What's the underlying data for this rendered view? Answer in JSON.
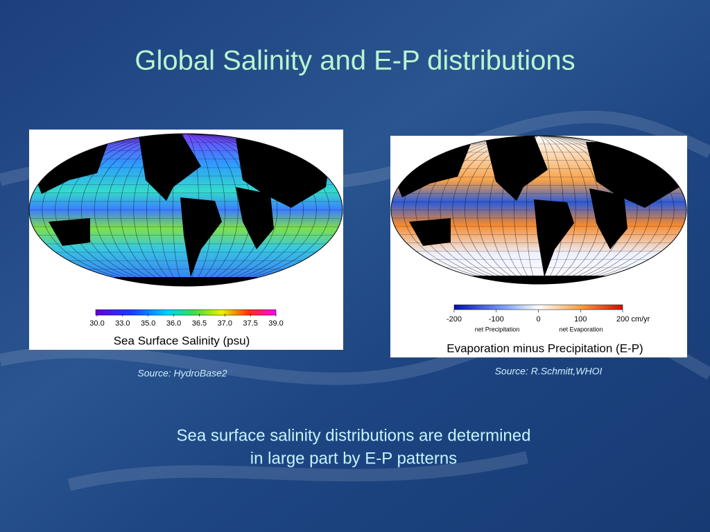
{
  "slide": {
    "title": "Global Salinity and E-P distributions",
    "figures": [
      {
        "colorbar_labels": [
          "30.0",
          "33.0",
          "35.0",
          "36.0",
          "36.5",
          "37.0",
          "37.5",
          "39.0"
        ],
        "caption": "Sea Surface Salinity (psu)",
        "source": "Source:  HydroBase2"
      },
      {
        "colorbar_labels": [
          "-200",
          "-100",
          "0",
          "100",
          "200 cm/yr"
        ],
        "colorbar_sublabels": [
          "net Precipitation",
          "net Evaporation"
        ],
        "caption": "Evaporation minus Precipitation (E-P)",
        "source": "Source:  R.Schmitt,WHOI"
      }
    ],
    "body": [
      "Sea surface salinity distributions are determined",
      "in large part by E-P patterns"
    ]
  }
}
